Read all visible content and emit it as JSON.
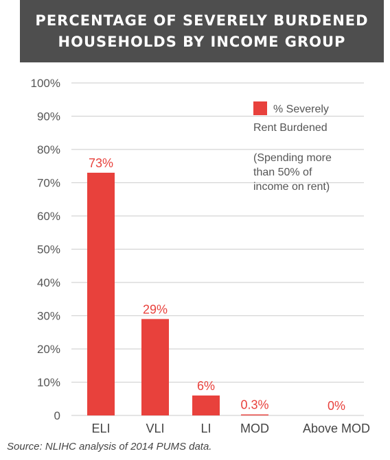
{
  "title_lines": [
    "PERCENTAGE OF SEVERELY BURDENED",
    "HOUSEHOLDS BY INCOME GROUP"
  ],
  "source": "Source: NLIHC analysis of 2014 PUMS data.",
  "colors": {
    "bar": "#e8413c",
    "grid": "#d4d4d4",
    "banner": "#4e4e4e"
  },
  "chart_data": {
    "type": "bar",
    "title": "PERCENTAGE OF SEVERELY BURDENED HOUSEHOLDS BY INCOME GROUP",
    "categories": [
      "ELI",
      "VLI",
      "LI",
      "MOD",
      "Above MOD"
    ],
    "series": [
      {
        "name": "% Severely Rent Burdened",
        "values": [
          73,
          29,
          6,
          0.3,
          0
        ]
      }
    ],
    "data_labels": [
      "73%",
      "29%",
      "6%",
      "0.3%",
      "0%"
    ],
    "ylim": [
      0,
      100
    ],
    "yticks": [
      0,
      10,
      20,
      30,
      40,
      50,
      60,
      70,
      80,
      90,
      100
    ],
    "ytick_labels": [
      "0",
      "10%",
      "20%",
      "30%",
      "40%",
      "50%",
      "60%",
      "70%",
      "80%",
      "90%",
      "100%"
    ],
    "grid": true,
    "legend": {
      "placement": "top-right",
      "lines": [
        "% Severely",
        "Rent Burdened"
      ],
      "note_lines": [
        "(Spending more",
        "than 50% of",
        "income on rent)"
      ]
    }
  }
}
